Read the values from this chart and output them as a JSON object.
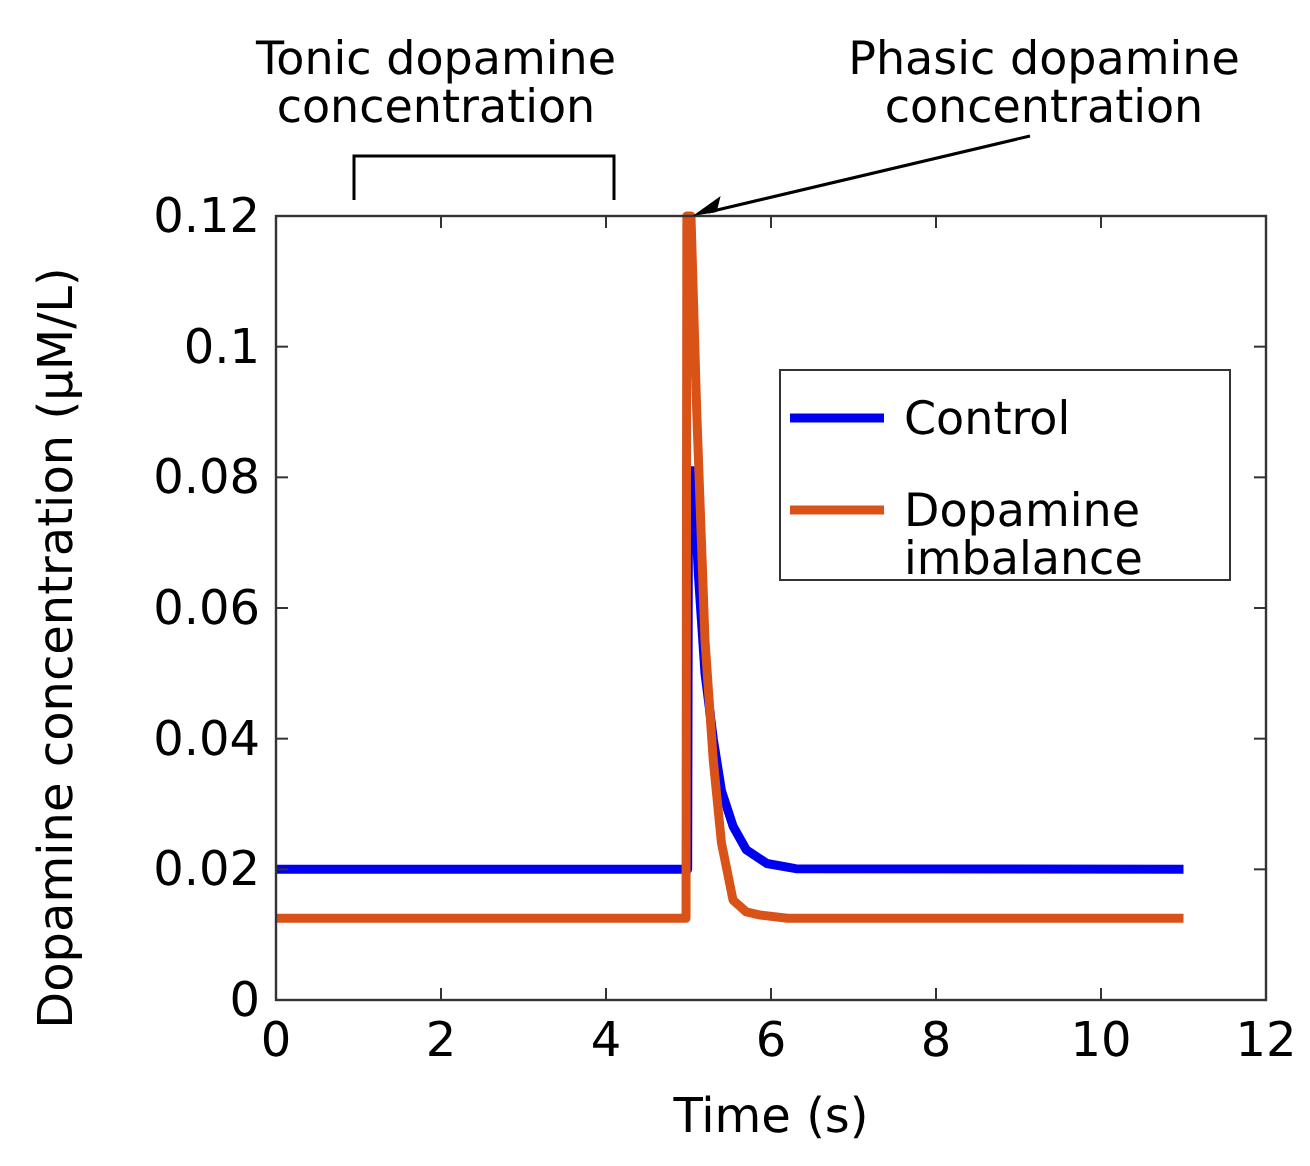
{
  "chart_data": {
    "type": "line",
    "xlabel": "Time (s)",
    "ylabel": "Dopamine concentration (μM/L)",
    "xlim": [
      0,
      12
    ],
    "xticks": [
      0,
      2,
      4,
      6,
      8,
      10,
      12
    ],
    "ylim": [
      0,
      0.12
    ],
    "yticks": [
      0,
      0.02,
      0.04,
      0.06,
      0.08,
      0.1,
      0.12
    ],
    "legend": "right",
    "grid": false,
    "line_style": "solid",
    "annotations": [
      "Tonic dopamine concentration",
      {
        "text": "Phasic dopamine concentration",
        "x": 5.05,
        "y": 0.12
      }
    ],
    "series": [
      {
        "name": "Control",
        "color": "#0000f0",
        "x": [
          0,
          4.99,
          5.0,
          5.06,
          5.12,
          5.2,
          5.3,
          5.4,
          5.54,
          5.7,
          5.95,
          6.3,
          11
        ],
        "values": [
          0.02,
          0.02,
          0.081,
          0.081,
          0.065,
          0.05,
          0.04,
          0.032,
          0.0266,
          0.023,
          0.0209,
          0.0201,
          0.02
        ]
      },
      {
        "name": "Dopamine imbalance",
        "color": "#d95319",
        "x": [
          0,
          4.97,
          4.98,
          5.03,
          5.1,
          5.2,
          5.3,
          5.4,
          5.54,
          5.7,
          5.87,
          6.2,
          11
        ],
        "values": [
          0.0125,
          0.0125,
          0.12,
          0.12,
          0.09,
          0.055,
          0.0367,
          0.024,
          0.0153,
          0.0135,
          0.013,
          0.0125,
          0.0125
        ]
      }
    ]
  }
}
